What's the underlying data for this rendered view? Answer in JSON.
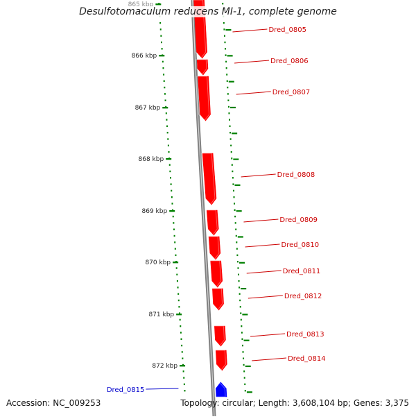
{
  "title": "Desulfotomaculum reducens MI-1, complete genome",
  "accession": "Accession: NC_009253",
  "summary": "Topology: circular; Length: 3,608,104 bp; Genes: 3,375",
  "colors": {
    "forward_gene": "#ff0000",
    "reverse_gene": "#0000ff",
    "backbone": "#808080",
    "ticks": "#008000",
    "forward_label": "#cc0000",
    "reverse_label": "#0000cc"
  },
  "ticks": [
    "865 kbp",
    "866 kbp",
    "867 kbp",
    "868 kbp",
    "869 kbp",
    "870 kbp",
    "871 kbp",
    "872 kbp"
  ],
  "genes": [
    {
      "label": "Dred_0805",
      "strand": "+"
    },
    {
      "label": "Dred_0806",
      "strand": "+"
    },
    {
      "label": "Dred_0807",
      "strand": "+"
    },
    {
      "label": "Dred_0808",
      "strand": "+"
    },
    {
      "label": "Dred_0809",
      "strand": "+"
    },
    {
      "label": "Dred_0810",
      "strand": "+"
    },
    {
      "label": "Dred_0811",
      "strand": "+"
    },
    {
      "label": "Dred_0812",
      "strand": "+"
    },
    {
      "label": "Dred_0813",
      "strand": "+"
    },
    {
      "label": "Dred_0814",
      "strand": "+"
    },
    {
      "label": "Dred_0815",
      "strand": "-"
    }
  ]
}
